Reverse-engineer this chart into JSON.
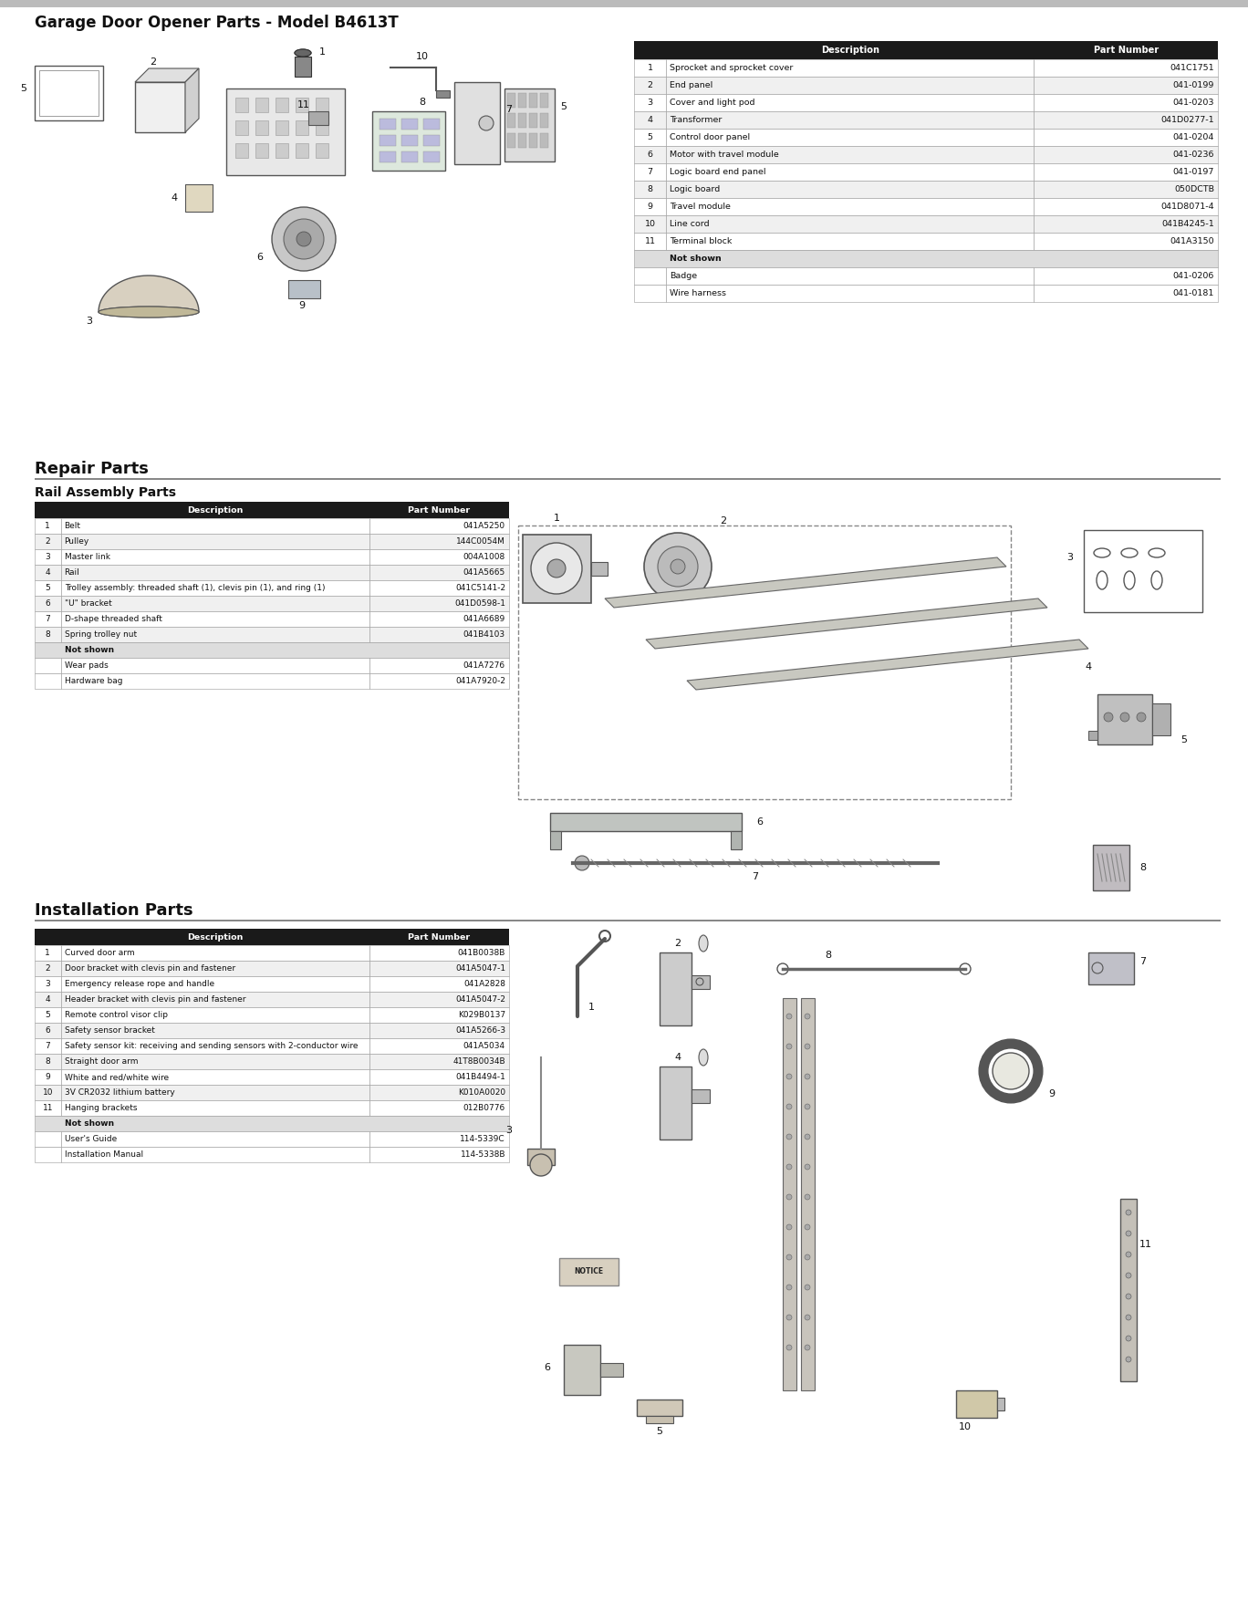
{
  "bg_color": "#ffffff",
  "section1": {
    "title": "Garage Door Opener Parts - Model B4613T",
    "table_rows": [
      [
        "1",
        "Sprocket and sprocket cover",
        "041C1751"
      ],
      [
        "2",
        "End panel",
        "041-0199"
      ],
      [
        "3",
        "Cover and light pod",
        "041-0203"
      ],
      [
        "4",
        "Transformer",
        "041D0277-1"
      ],
      [
        "5",
        "Control door panel",
        "041-0204"
      ],
      [
        "6",
        "Motor with travel module",
        "041-0236"
      ],
      [
        "7",
        "Logic board end panel",
        "041-0197"
      ],
      [
        "8",
        "Logic board",
        "050DCTB"
      ],
      [
        "9",
        "Travel module",
        "041D8071-4"
      ],
      [
        "10",
        "Line cord",
        "041B4245-1"
      ],
      [
        "11",
        "Terminal block",
        "041A3150"
      ]
    ],
    "not_shown_rows": [
      [
        "",
        "Badge",
        "041-0206"
      ],
      [
        "",
        "Wire harness",
        "041-0181"
      ]
    ]
  },
  "section2": {
    "title": "Repair Parts",
    "subtitle": "Rail Assembly Parts",
    "table_rows": [
      [
        "1",
        "Belt",
        "041A5250"
      ],
      [
        "2",
        "Pulley",
        "144C0054M"
      ],
      [
        "3",
        "Master link",
        "004A1008"
      ],
      [
        "4",
        "Rail",
        "041A5665"
      ],
      [
        "5",
        "Trolley assembly: threaded shaft (1), clevis pin (1), and ring (1)",
        "041C5141-2"
      ],
      [
        "6",
        "\"U\" bracket",
        "041D0598-1"
      ],
      [
        "7",
        "D-shape threaded shaft",
        "041A6689"
      ],
      [
        "8",
        "Spring trolley nut",
        "041B4103"
      ]
    ],
    "not_shown_rows": [
      [
        "",
        "Wear pads",
        "041A7276"
      ],
      [
        "",
        "Hardware bag",
        "041A7920-2"
      ]
    ]
  },
  "section3": {
    "title": "Installation Parts",
    "table_rows": [
      [
        "1",
        "Curved door arm",
        "041B0038B"
      ],
      [
        "2",
        "Door bracket with clevis pin and fastener",
        "041A5047-1"
      ],
      [
        "3",
        "Emergency release rope and handle",
        "041A2828"
      ],
      [
        "4",
        "Header bracket with clevis pin and fastener",
        "041A5047-2"
      ],
      [
        "5",
        "Remote control visor clip",
        "K029B0137"
      ],
      [
        "6",
        "Safety sensor bracket",
        "041A5266-3"
      ],
      [
        "7",
        "Safety sensor kit: receiving and sending sensors with 2-conductor wire",
        "041A5034"
      ],
      [
        "8",
        "Straight door arm",
        "41T8B0034B"
      ],
      [
        "9",
        "White and red/white wire",
        "041B4494-1"
      ],
      [
        "10",
        "3V CR2032 lithium battery",
        "K010A0020"
      ],
      [
        "11",
        "Hanging brackets",
        "012B0776"
      ]
    ],
    "not_shown_rows": [
      [
        "",
        "User's Guide",
        "114-5339C"
      ],
      [
        "",
        "Installation Manual",
        "114-5338B"
      ]
    ]
  },
  "header_bg": "#1a1a1a",
  "header_fg": "#ffffff",
  "row_bg_white": "#ffffff",
  "row_bg_gray": "#f0f0f0",
  "border_color": "#999999",
  "not_shown_bg": "#dddddd",
  "text_color": "#111111",
  "line_color": "#666666",
  "top_bar_color": "#999999",
  "section_line_color": "#888888"
}
